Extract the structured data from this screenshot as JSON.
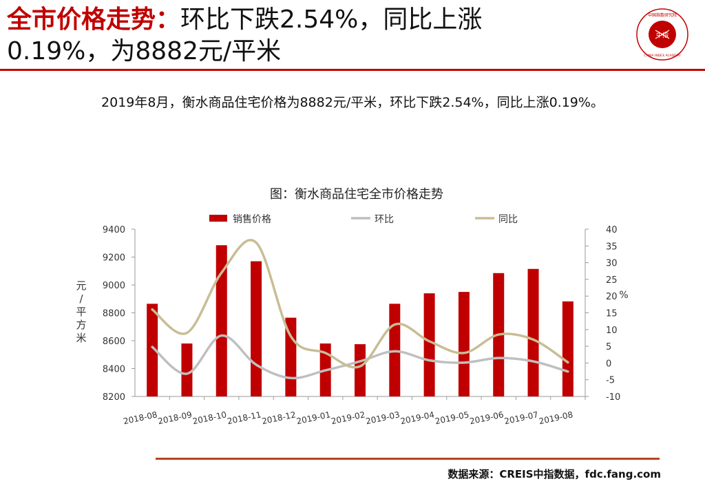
{
  "headline": {
    "accent": "全市价格走势：",
    "line1_rest": "环比下跌2.54%，同比上涨",
    "line2": "0.19%，为8882元/平米"
  },
  "logo": {
    "top_text": "中国指数研究院",
    "center_text": "中指",
    "bottom_text": "CHINA INDEX ACADEMY"
  },
  "summary": "2019年8月，衡水商品住宅价格为8882元/平米，环比下跌2.54%，同比上涨0.19%。",
  "source": "数据来源：CREIS中指数据，fdc.fang.com",
  "colors": {
    "brand_red": "#c00000",
    "bar": "#c00000",
    "mom_line": "#bfbfbf",
    "yoy_line": "#c8bd94",
    "bottom_rule": "#b5451b"
  },
  "chart_data": {
    "type": "bar",
    "title": "图：衡水商品住宅全市价格走势",
    "categories": [
      "2018-08",
      "2018-09",
      "2018-10",
      "2018-11",
      "2018-12",
      "2019-01",
      "2019-02",
      "2019-03",
      "2019-04",
      "2019-05",
      "2019-06",
      "2019-07",
      "2019-08"
    ],
    "series": [
      {
        "name": "销售价格",
        "type": "bar",
        "axis": "left",
        "values": [
          8865,
          8580,
          9285,
          9170,
          8765,
          8580,
          8575,
          8865,
          8940,
          8950,
          9085,
          9115,
          8882
        ]
      },
      {
        "name": "环比",
        "type": "line",
        "axis": "right",
        "values": [
          4.8,
          -3.2,
          8.2,
          -0.5,
          -4.5,
          -2.2,
          0.5,
          3.5,
          0.8,
          0.1,
          1.5,
          0.5,
          -2.54
        ]
      },
      {
        "name": "同比",
        "type": "line",
        "axis": "right",
        "values": [
          16,
          9,
          27,
          36,
          8,
          3,
          -1,
          11.5,
          6.5,
          3,
          8.5,
          7,
          0.19
        ]
      }
    ],
    "ylabel": "元/平方米",
    "y2label": "%",
    "ylim": [
      8200,
      9400
    ],
    "yticks": [
      8200,
      8400,
      8600,
      8800,
      9000,
      9200,
      9400
    ],
    "y2lim": [
      -10,
      40
    ],
    "y2ticks": [
      -10,
      -5,
      0,
      5,
      10,
      15,
      20,
      25,
      30,
      35,
      40
    ],
    "legend_position": "top",
    "grid": false
  }
}
